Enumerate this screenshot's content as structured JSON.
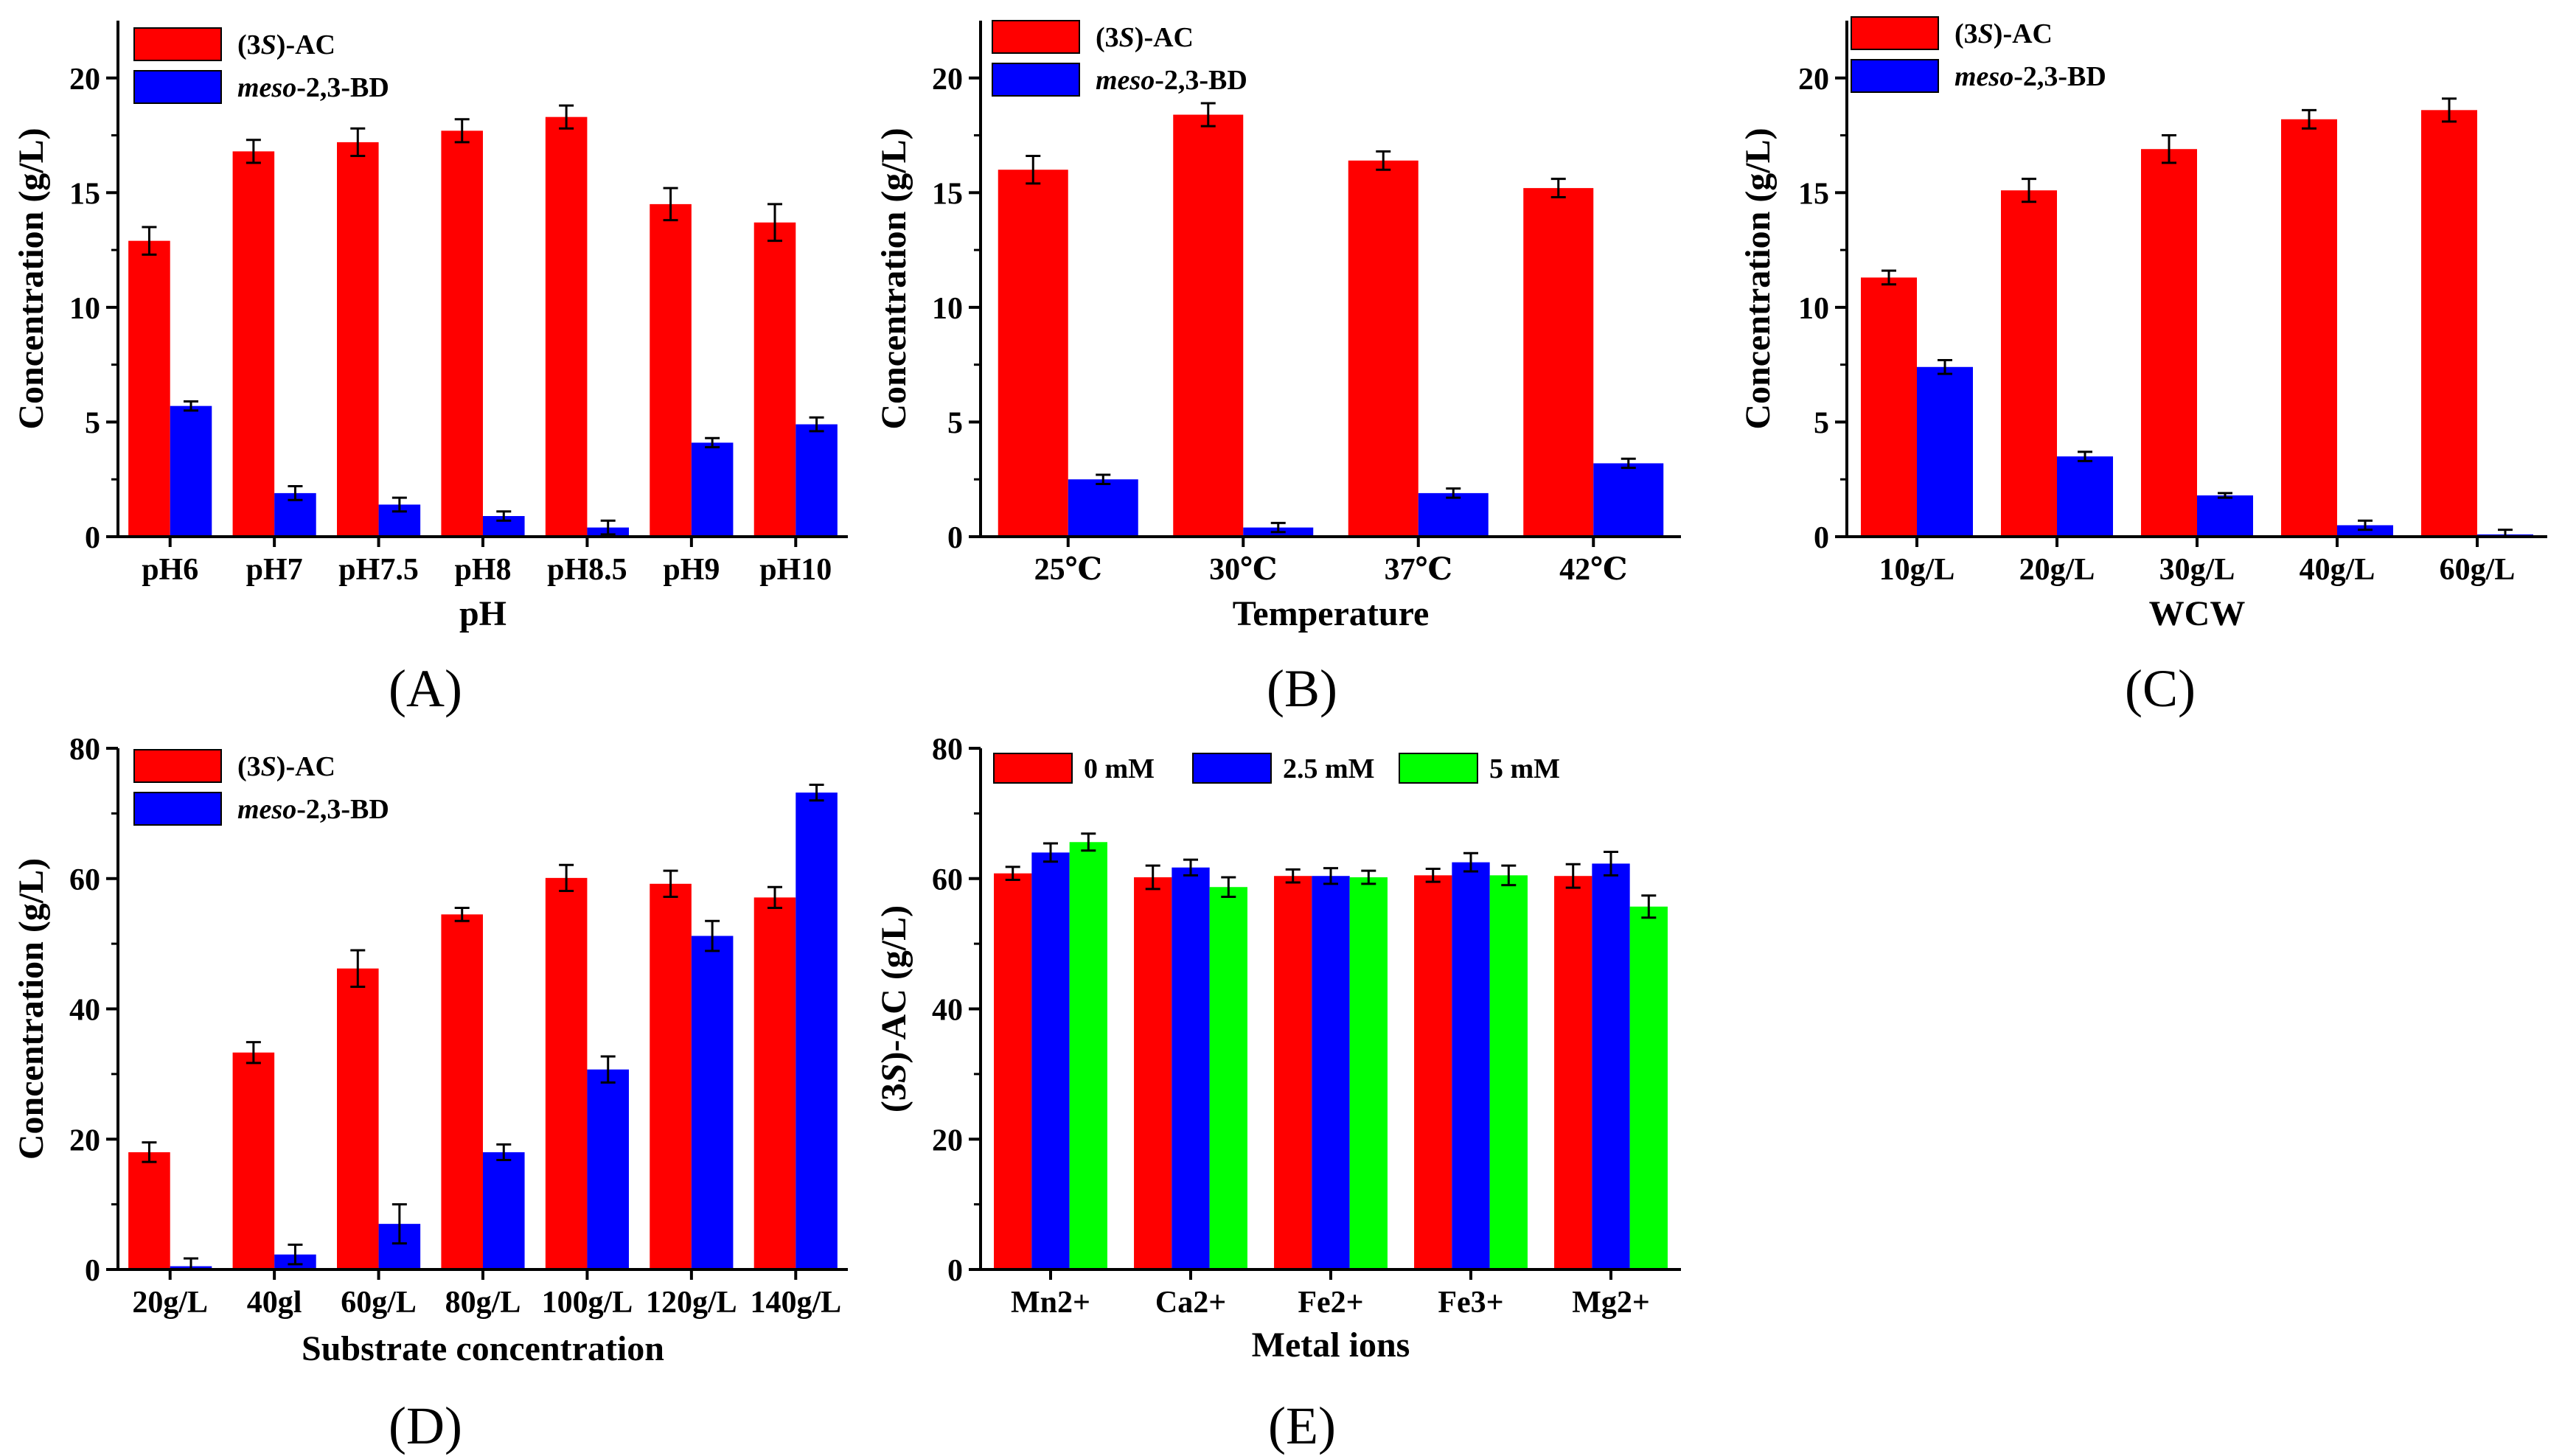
{
  "colors": {
    "red": "#ff0000",
    "blue": "#0000ff",
    "green": "#00ff00",
    "axis": "#000000"
  },
  "chart_data": [
    {
      "panel": "(A)",
      "type": "bar",
      "xlabel": "pH",
      "ylabel": "Concentration (g/L)",
      "ylim": [
        0,
        22.5
      ],
      "yticks": [
        0,
        5,
        10,
        15,
        20
      ],
      "categories": [
        "pH6",
        "pH7",
        "pH7.5",
        "pH8",
        "pH8.5",
        "pH9",
        "pH10"
      ],
      "legend": {
        "placement": "top-left",
        "columns": 1
      },
      "series": [
        {
          "name": "(3S)-AC",
          "color": "#ff0000",
          "values": [
            12.9,
            16.8,
            17.2,
            17.7,
            18.3,
            14.5,
            13.7
          ],
          "errors": [
            0.6,
            0.5,
            0.6,
            0.5,
            0.5,
            0.7,
            0.8
          ]
        },
        {
          "name": "meso-2,3-BD",
          "color": "#0000ff",
          "values": [
            5.7,
            1.9,
            1.4,
            0.9,
            0.4,
            4.1,
            4.9
          ],
          "errors": [
            0.2,
            0.3,
            0.3,
            0.2,
            0.3,
            0.2,
            0.3
          ]
        }
      ]
    },
    {
      "panel": "(B)",
      "type": "bar",
      "xlabel": "Temperature",
      "ylabel": "Concentration (g/L)",
      "ylim": [
        0,
        22.5
      ],
      "yticks": [
        0,
        5,
        10,
        15,
        20
      ],
      "categories": [
        "25℃",
        "30℃",
        "37℃",
        "42℃"
      ],
      "legend": {
        "placement": "top-left",
        "columns": 1
      },
      "series": [
        {
          "name": "(3S)-AC",
          "color": "#ff0000",
          "values": [
            16.0,
            18.4,
            16.4,
            15.2
          ],
          "errors": [
            0.6,
            0.5,
            0.4,
            0.4
          ]
        },
        {
          "name": "meso-2,3-BD",
          "color": "#0000ff",
          "values": [
            2.5,
            0.4,
            1.9,
            3.2
          ],
          "errors": [
            0.2,
            0.2,
            0.2,
            0.2
          ]
        }
      ]
    },
    {
      "panel": "(C)",
      "type": "bar",
      "xlabel": "WCW",
      "ylabel": "Concentration (g/L)",
      "ylim": [
        0,
        22.5
      ],
      "yticks": [
        0,
        5,
        10,
        15,
        20
      ],
      "categories": [
        "10g/L",
        "20g/L",
        "30g/L",
        "40g/L",
        "60g/L"
      ],
      "legend": {
        "placement": "top-left",
        "columns": 1
      },
      "series": [
        {
          "name": "(3S)-AC",
          "color": "#ff0000",
          "values": [
            11.3,
            15.1,
            16.9,
            18.2,
            18.6
          ],
          "errors": [
            0.3,
            0.5,
            0.6,
            0.4,
            0.5
          ]
        },
        {
          "name": "meso-2,3-BD",
          "color": "#0000ff",
          "values": [
            7.4,
            3.5,
            1.8,
            0.5,
            0.1
          ],
          "errors": [
            0.3,
            0.2,
            0.1,
            0.2,
            0.2
          ]
        }
      ]
    },
    {
      "panel": "(D)",
      "type": "bar",
      "xlabel": "Substrate concentration",
      "ylabel": "Concentration (g/L)",
      "ylim": [
        0,
        80
      ],
      "yticks": [
        0,
        20,
        40,
        60,
        80
      ],
      "categories": [
        "20g/L",
        "40gl",
        "60g/L",
        "80g/L",
        "100g/L",
        "120g/L",
        "140g/L"
      ],
      "legend": {
        "placement": "top-left",
        "columns": 1
      },
      "series": [
        {
          "name": "(3S)-AC",
          "color": "#ff0000",
          "values": [
            18.0,
            33.3,
            46.2,
            54.5,
            60.1,
            59.2,
            57.1
          ],
          "errors": [
            1.5,
            1.6,
            2.8,
            1.0,
            2.0,
            2.0,
            1.6
          ]
        },
        {
          "name": "meso-2,3-BD",
          "color": "#0000ff",
          "values": [
            0.5,
            2.3,
            7.0,
            18.0,
            30.7,
            51.2,
            73.2
          ],
          "errors": [
            1.2,
            1.5,
            3.0,
            1.2,
            2.0,
            2.3,
            1.2
          ]
        }
      ]
    },
    {
      "panel": "(E)",
      "type": "bar",
      "xlabel": "Metal ions",
      "ylabel": "(3S)-AC (g/L)",
      "ylim": [
        0,
        80
      ],
      "yticks": [
        0,
        20,
        40,
        60,
        80
      ],
      "categories": [
        "Mn2+",
        "Ca2+",
        "Fe2+",
        "Fe3+",
        "Mg2+"
      ],
      "legend": {
        "placement": "top",
        "columns": 3
      },
      "series": [
        {
          "name": "0 mM",
          "color": "#ff0000",
          "values": [
            60.8,
            60.2,
            60.4,
            60.5,
            60.4
          ],
          "errors": [
            1.0,
            1.8,
            1.0,
            1.0,
            1.8
          ]
        },
        {
          "name": "2.5 mM",
          "color": "#0000ff",
          "values": [
            64.0,
            61.7,
            60.4,
            62.5,
            62.3
          ],
          "errors": [
            1.4,
            1.2,
            1.2,
            1.4,
            1.8
          ]
        },
        {
          "name": "5 mM",
          "color": "#00ff00",
          "values": [
            65.6,
            58.7,
            60.2,
            60.5,
            55.7
          ],
          "errors": [
            1.3,
            1.5,
            1.0,
            1.5,
            1.7
          ]
        }
      ]
    }
  ]
}
